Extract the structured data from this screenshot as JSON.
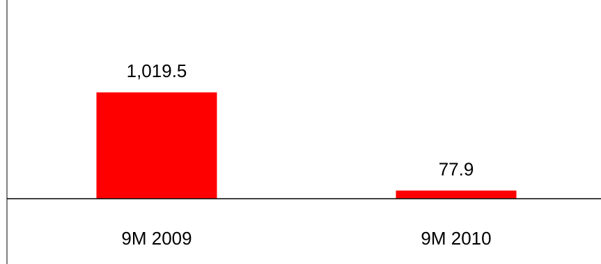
{
  "chart_data": {
    "type": "bar",
    "categories": [
      "9M 2009",
      "9M 2010"
    ],
    "values": [
      1019.5,
      77.9
    ],
    "value_labels": [
      "1,019.5",
      "77.9"
    ],
    "ylim": [
      0,
      1019.5
    ],
    "grid": false,
    "legend": "none",
    "bar_color": "#ff0000",
    "axis_color": "#000000"
  }
}
